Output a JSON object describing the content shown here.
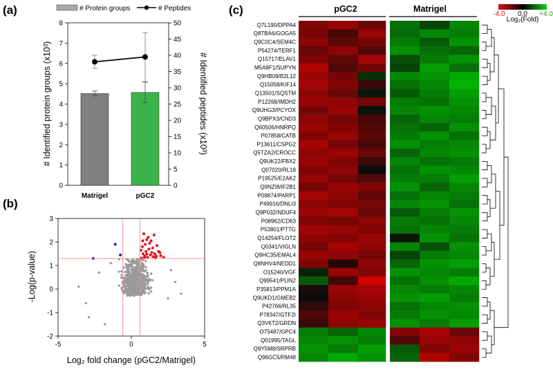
{
  "panels": {
    "a": "(a)",
    "b": "(b)",
    "c": "(c)"
  },
  "chart_data": [
    {
      "type": "bar",
      "panel": "a",
      "categories": [
        "Matrigel",
        "pGC2"
      ],
      "series": [
        {
          "name": "# Protein groups",
          "axis": "left",
          "values": [
            4.52,
            4.57
          ],
          "errors": [
            0.12,
            0.5
          ],
          "colors": [
            "#808080",
            "#3cb34a"
          ]
        },
        {
          "name": "# Peptides",
          "axis": "right",
          "type": "line",
          "values": [
            38,
            39.5
          ],
          "errors": [
            2,
            7.5
          ]
        }
      ],
      "ylabel": "# Identified protein groups (x10³)",
      "y2label": "# Identified peptides (x10³)",
      "ylim": [
        0,
        8
      ],
      "y2lim": [
        0,
        50
      ],
      "yticks": [
        0,
        1,
        2,
        3,
        4,
        5,
        6,
        7,
        8
      ],
      "y2ticks": [
        0,
        5,
        10,
        15,
        20,
        25,
        30,
        35,
        40,
        45,
        50
      ],
      "legend_position": "top"
    },
    {
      "type": "scatter",
      "panel": "b",
      "xlabel": "Log₂ fold change (pGC2/Matrigel)",
      "ylabel": "-Log(p-value)",
      "xlim": [
        -5,
        5
      ],
      "ylim": [
        -2,
        3
      ],
      "xticks": [
        -5,
        0,
        5
      ],
      "yticks": [
        -2,
        -1,
        0,
        1,
        2,
        3
      ],
      "thresholds": {
        "x": [
          -0.58,
          0.58
        ],
        "y": 1.3
      },
      "series": [
        {
          "color": "#0a2aa0",
          "points": [
            [
              -1.1,
              1.9
            ],
            [
              -2.6,
              1.3
            ],
            [
              -0.75,
              1.45
            ]
          ]
        },
        {
          "color": "#e0101a",
          "points": [
            [
              0.7,
              1.32
            ],
            [
              0.8,
              1.5
            ],
            [
              0.9,
              1.4
            ],
            [
              1.0,
              1.6
            ],
            [
              1.1,
              1.35
            ],
            [
              1.2,
              1.7
            ],
            [
              1.3,
              1.45
            ],
            [
              1.4,
              1.55
            ],
            [
              1.5,
              1.38
            ],
            [
              0.75,
              1.8
            ],
            [
              0.95,
              1.9
            ],
            [
              1.05,
              2.1
            ],
            [
              1.25,
              1.95
            ],
            [
              1.45,
              1.75
            ],
            [
              1.6,
              1.5
            ],
            [
              1.7,
              1.4
            ],
            [
              1.85,
              1.6
            ],
            [
              2.0,
              1.42
            ],
            [
              0.85,
              2.35
            ],
            [
              1.15,
              2.2
            ],
            [
              1.35,
              2.05
            ],
            [
              1.55,
              2.3
            ],
            [
              0.65,
              1.65
            ],
            [
              1.75,
              1.85
            ],
            [
              2.2,
              1.35
            ],
            [
              0.9,
              1.33
            ],
            [
              1.65,
              1.32
            ],
            [
              1.95,
              1.55
            ],
            [
              1.05,
              1.48
            ],
            [
              0.78,
              2.05
            ]
          ]
        },
        {
          "color": "#9a9a9a",
          "points": "random-cloud"
        }
      ]
    },
    {
      "type": "heatmap",
      "panel": "c",
      "column_groups": [
        "pGC2",
        "Matrigel"
      ],
      "color_scale": {
        "label": "Log₂(Fold)",
        "min": -4.0,
        "mid": 0.0,
        "max": 4.0,
        "ticks": [
          "-4.0",
          "0.0",
          "+4.0"
        ],
        "colors": [
          "#e01010",
          "#000000",
          "#10d010"
        ]
      },
      "rows": [
        "Q7L190/DPPA4",
        "Q8TBA6/GOGA5",
        "Q9C0C4/SEM4C",
        "P54274/TERF1",
        "Q15717/ELAV1",
        "M5A8F1/SUPYN",
        "Q9HB09/B2L12",
        "Q15058/KIF14",
        "Q13501/SQSTM",
        "P12268/IMDH2",
        "Q9UHG3/PCYOX",
        "Q9BPX3/CND3",
        "Q60506/HNRPQ",
        "P07858/CATB",
        "P13611/CSPG2",
        "Q5TZA2/CROCC",
        "Q9UK22/FBX2",
        "Q07020/RL18",
        "P19525/E2AK2",
        "Q9NZI8/IF2B1",
        "P09874/PARP1",
        "P49916/DNLI3",
        "Q9P032/NDUF4",
        "P08962/CD63",
        "P53801/PTTG",
        "Q14254/FLOT2",
        "Q0341/VIGLN",
        "Q9HC35/EMAL4",
        "Q8NHV4/NEDD1",
        "O15240/VGF",
        "Q99541/PLIN2",
        "P35813/PPM1A",
        "Q9UKD1/GMEB2",
        "P42766/RL35",
        "P78347/GTF2I",
        "Q3V6T2/GRDN",
        "O75487/GPC4",
        "Q01995/TAGL",
        "Q9Y5M8/SRPRB",
        "Q96GC5/RM48"
      ],
      "values": [
        [
          -2.2,
          -2.6,
          -1.8,
          2.0,
          1.2,
          2.4
        ],
        [
          -2.0,
          -1.2,
          -2.6,
          1.9,
          2.4,
          2.2
        ],
        [
          -2.4,
          -1.6,
          -2.0,
          2.2,
          1.6,
          2.6
        ],
        [
          -1.8,
          -2.4,
          -1.4,
          2.6,
          2.0,
          1.8
        ],
        [
          -2.2,
          -1.6,
          -2.8,
          1.4,
          2.2,
          2.6
        ],
        [
          -3.0,
          -1.4,
          -2.0,
          1.2,
          2.8,
          2.0
        ],
        [
          -2.6,
          -2.0,
          0.8,
          2.4,
          2.6,
          3.0
        ],
        [
          -2.8,
          -2.2,
          -1.0,
          2.0,
          2.4,
          3.2
        ],
        [
          -2.4,
          -1.8,
          0.4,
          1.6,
          2.2,
          2.8
        ],
        [
          -2.6,
          -2.4,
          -2.0,
          2.2,
          2.0,
          2.6
        ],
        [
          -2.0,
          -2.6,
          0.3,
          2.4,
          2.6,
          2.4
        ],
        [
          -2.4,
          -2.0,
          -1.2,
          1.8,
          2.4,
          2.2
        ],
        [
          -2.6,
          -2.2,
          -1.4,
          2.0,
          1.8,
          2.6
        ],
        [
          -2.2,
          -2.6,
          -1.6,
          2.2,
          2.6,
          2.0
        ],
        [
          -2.8,
          -2.0,
          -1.2,
          2.6,
          2.2,
          2.4
        ],
        [
          -2.4,
          -2.6,
          -1.8,
          1.8,
          2.4,
          2.6
        ],
        [
          -2.6,
          -2.2,
          -1.0,
          2.4,
          2.0,
          2.2
        ],
        [
          -2.2,
          -2.4,
          0.2,
          2.0,
          2.6,
          2.4
        ],
        [
          -2.6,
          -2.0,
          -1.4,
          2.2,
          2.2,
          2.8
        ],
        [
          -2.0,
          -2.6,
          -2.2,
          2.6,
          1.8,
          2.4
        ],
        [
          -2.8,
          -2.4,
          -1.6,
          2.0,
          2.4,
          2.2
        ],
        [
          -2.4,
          -2.2,
          -2.0,
          2.4,
          2.6,
          2.0
        ],
        [
          -2.6,
          -2.8,
          -1.8,
          1.6,
          2.2,
          2.6
        ],
        [
          -2.2,
          -2.0,
          -2.4,
          2.2,
          2.0,
          2.4
        ],
        [
          -2.8,
          -2.6,
          -2.2,
          2.0,
          2.4,
          2.2
        ],
        [
          -2.4,
          -2.2,
          -2.6,
          0.4,
          2.6,
          2.0
        ],
        [
          -2.0,
          -2.8,
          -2.4,
          2.4,
          1.4,
          2.6
        ],
        [
          -2.6,
          -2.4,
          -2.0,
          1.2,
          2.2,
          2.4
        ],
        [
          -2.2,
          -0.6,
          -2.4,
          1.8,
          2.6,
          2.8
        ],
        [
          0.6,
          -2.6,
          -2.2,
          2.6,
          2.4,
          2.2
        ],
        [
          1.6,
          -1.2,
          -3.6,
          2.0,
          2.6,
          3.0
        ],
        [
          -0.4,
          -2.6,
          -2.8,
          2.4,
          2.2,
          2.4
        ],
        [
          -0.2,
          -2.4,
          -2.6,
          2.6,
          2.8,
          2.2
        ],
        [
          -0.8,
          -2.2,
          -2.4,
          2.0,
          2.4,
          2.6
        ],
        [
          -1.4,
          -2.6,
          -2.2,
          2.2,
          2.6,
          2.4
        ],
        [
          -1.0,
          -2.4,
          -2.6,
          2.6,
          2.2,
          2.8
        ],
        [
          2.2,
          1.8,
          2.4,
          -2.2,
          -2.8,
          -1.8
        ],
        [
          2.4,
          2.6,
          2.2,
          -1.4,
          -2.6,
          -2.4
        ],
        [
          2.6,
          2.2,
          2.8,
          1.6,
          -2.2,
          -2.6
        ],
        [
          2.4,
          3.0,
          2.6,
          1.8,
          -3.0,
          -2.2
        ]
      ]
    }
  ]
}
